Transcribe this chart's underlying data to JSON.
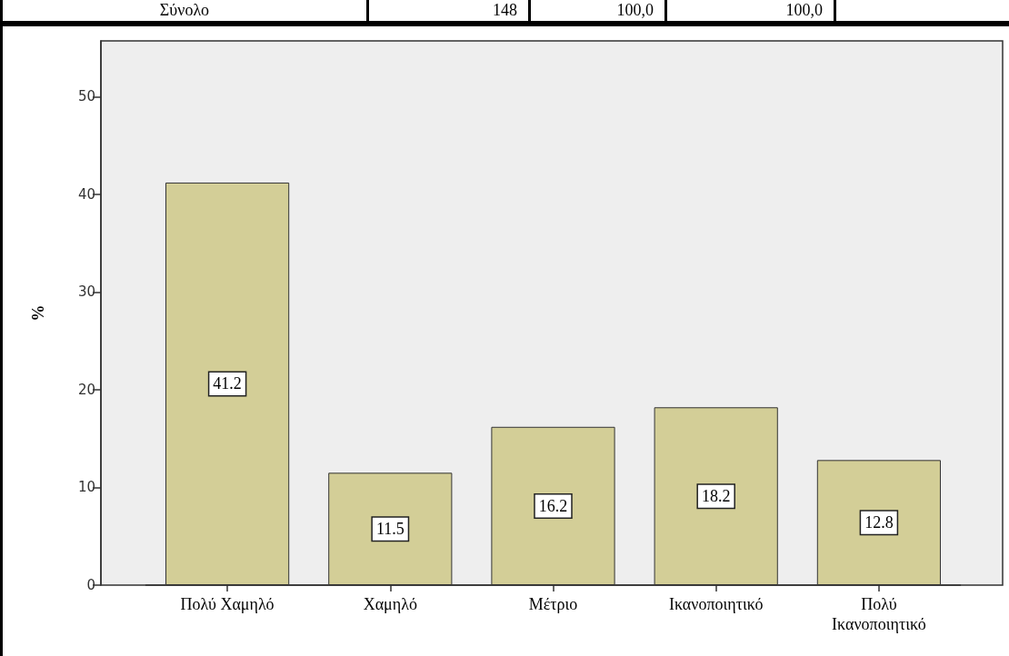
{
  "chart_data": {
    "type": "bar",
    "categories": [
      "Πολύ Χαμηλό",
      "Χαμηλό",
      "Μέτριο",
      "Ικανοποιητικό",
      "Πολύ Ικανοποιητικό"
    ],
    "values": [
      41.2,
      11.5,
      16.2,
      18.2,
      12.8
    ],
    "color": "#d3ce97",
    "ylabel": "%",
    "ylim": [
      0,
      55.7
    ],
    "yticks": [
      0,
      10,
      20,
      30,
      40,
      50
    ],
    "data_labels": true,
    "annotations": [
      "Σύνολο",
      "148",
      "100,0",
      "100,0"
    ]
  }
}
